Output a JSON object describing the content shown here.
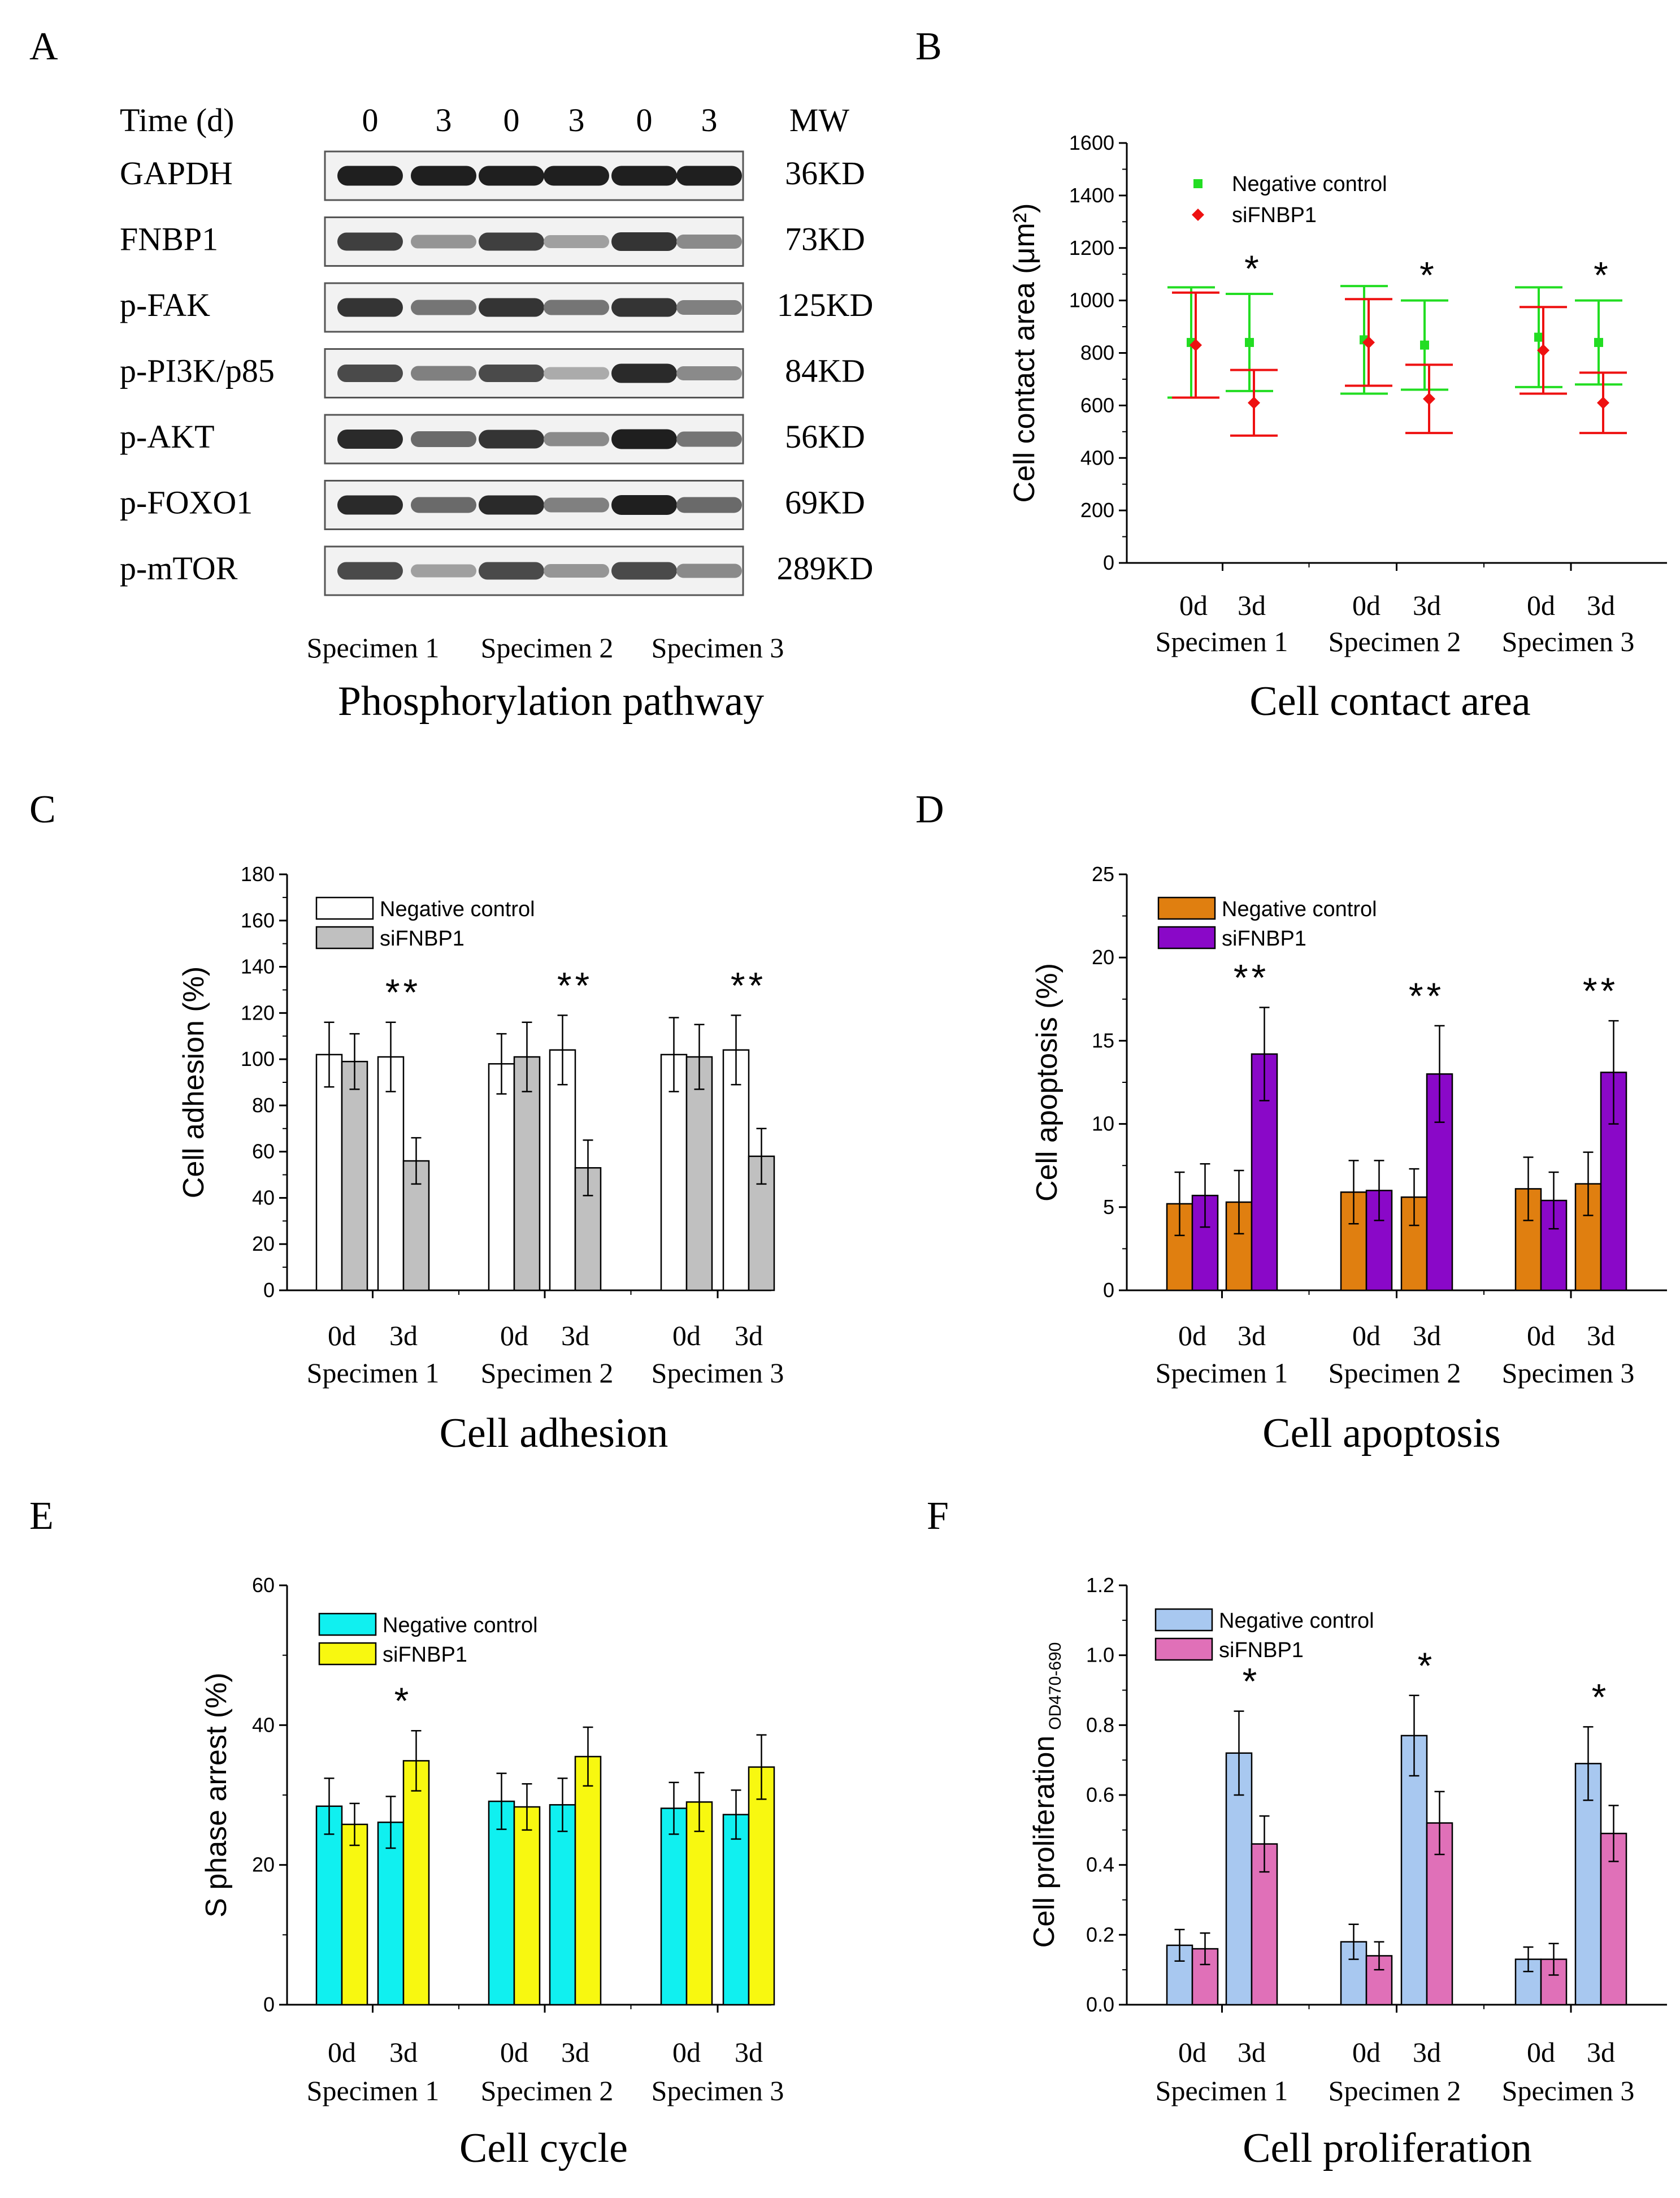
{
  "panel_letters": [
    "A",
    "B",
    "C",
    "D",
    "E",
    "F"
  ],
  "specimens": [
    "Specimen 1",
    "Specimen 2",
    "Specimen 3"
  ],
  "days": [
    "0d",
    "3d"
  ],
  "western_blot": {
    "caption": "Phosphorylation pathway",
    "time_label": "Time (d)",
    "mw_label": "MW",
    "time_points": [
      "0",
      "3",
      "0",
      "3",
      "0",
      "3"
    ],
    "specimen_labels": [
      "Specimen 1",
      "Specimen 2",
      "Specimen 3"
    ],
    "rows": [
      {
        "protein": "GAPDH",
        "mw": "36KD",
        "intensity": [
          0.95,
          0.95,
          0.95,
          0.95,
          0.95,
          0.95
        ]
      },
      {
        "protein": "FNBP1",
        "mw": "73KD",
        "intensity": [
          0.8,
          0.4,
          0.8,
          0.35,
          0.85,
          0.45
        ]
      },
      {
        "protein": "p-FAK",
        "mw": "125KD",
        "intensity": [
          0.85,
          0.55,
          0.85,
          0.55,
          0.85,
          0.5
        ]
      },
      {
        "protein": "p-PI3K/p85",
        "mw": "84KD",
        "intensity": [
          0.75,
          0.5,
          0.75,
          0.3,
          0.9,
          0.45
        ]
      },
      {
        "protein": "p-AKT",
        "mw": "56KD",
        "intensity": [
          0.9,
          0.6,
          0.85,
          0.45,
          0.95,
          0.55
        ]
      },
      {
        "protein": "p-FOXO1",
        "mw": "69KD",
        "intensity": [
          0.9,
          0.6,
          0.9,
          0.5,
          0.95,
          0.6
        ]
      },
      {
        "protein": "p-mTOR",
        "mw": "289KD",
        "intensity": [
          0.75,
          0.35,
          0.75,
          0.4,
          0.75,
          0.45
        ]
      }
    ]
  },
  "chart_data": [
    {
      "panel": "B",
      "type": "scatter",
      "caption": "Cell contact area",
      "ylabel": "Cell contact area (μm²)",
      "ylim": [
        0,
        1600
      ],
      "yticks": [
        0,
        200,
        400,
        600,
        800,
        1000,
        1200,
        1400,
        1600
      ],
      "categories": [
        "0d",
        "3d",
        "0d",
        "3d",
        "0d",
        "3d"
      ],
      "groups": [
        "Specimen 1",
        "Specimen 2",
        "Specimen 3"
      ],
      "series": [
        {
          "name": "Negative control",
          "color": "#22dd22",
          "marker": "square",
          "values": [
            840,
            840,
            850,
            830,
            860,
            840
          ],
          "errors": [
            210,
            185,
            205,
            170,
            190,
            160
          ]
        },
        {
          "name": "siFNBP1",
          "color": "#ee1111",
          "marker": "diamond",
          "values": [
            830,
            610,
            840,
            625,
            810,
            610
          ],
          "errors": [
            200,
            125,
            165,
            130,
            165,
            115
          ]
        }
      ],
      "significance": [
        "",
        "*",
        "",
        "*",
        "",
        "*"
      ]
    },
    {
      "panel": "C",
      "type": "bar",
      "caption": "Cell adhesion",
      "ylabel": "Cell adhesion (%)",
      "ylim": [
        0,
        180
      ],
      "yticks": [
        0,
        20,
        40,
        60,
        80,
        100,
        120,
        140,
        160,
        180
      ],
      "categories": [
        "0d",
        "3d",
        "0d",
        "3d",
        "0d",
        "3d"
      ],
      "groups": [
        "Specimen 1",
        "Specimen 2",
        "Specimen 3"
      ],
      "series": [
        {
          "name": "Negative control",
          "color": "#ffffff",
          "values": [
            102,
            101,
            98,
            104,
            102,
            104
          ],
          "errors": [
            14,
            15,
            13,
            15,
            16,
            15
          ]
        },
        {
          "name": "siFNBP1",
          "color": "#c0c0c0",
          "values": [
            99,
            56,
            101,
            53,
            101,
            58
          ],
          "errors": [
            12,
            10,
            15,
            12,
            14,
            12
          ]
        }
      ],
      "significance": [
        "",
        "**",
        "",
        "**",
        "",
        "**"
      ]
    },
    {
      "panel": "D",
      "type": "bar",
      "caption": "Cell apoptosis",
      "ylabel": "Cell apoptosis (%)",
      "ylim": [
        0,
        25
      ],
      "yticks": [
        0,
        5,
        10,
        15,
        20,
        25
      ],
      "categories": [
        "0d",
        "3d",
        "0d",
        "3d",
        "0d",
        "3d"
      ],
      "groups": [
        "Specimen 1",
        "Specimen 2",
        "Specimen 3"
      ],
      "series": [
        {
          "name": "Negative control",
          "color": "#e07f10",
          "values": [
            5.2,
            5.3,
            5.9,
            5.6,
            6.1,
            6.4
          ],
          "errors": [
            1.9,
            1.9,
            1.9,
            1.7,
            1.9,
            1.9
          ]
        },
        {
          "name": "siFNBP1",
          "color": "#8a08c8",
          "values": [
            5.7,
            14.2,
            6.0,
            13.0,
            5.4,
            13.1
          ],
          "errors": [
            1.9,
            2.8,
            1.8,
            2.9,
            1.7,
            3.1
          ]
        }
      ],
      "significance": [
        "",
        "**",
        "",
        "**",
        "",
        "**"
      ]
    },
    {
      "panel": "E",
      "type": "bar",
      "caption": "Cell cycle",
      "ylabel": "S phase arrest (%)",
      "ylim": [
        0,
        60
      ],
      "yticks": [
        0,
        20,
        40,
        60
      ],
      "categories": [
        "0d",
        "3d",
        "0d",
        "3d",
        "0d",
        "3d"
      ],
      "groups": [
        "Specimen 1",
        "Specimen 2",
        "Specimen 3"
      ],
      "series": [
        {
          "name": "Negative control",
          "color": "#10f0f0",
          "values": [
            28.4,
            26.1,
            29.1,
            28.6,
            28.1,
            27.2
          ],
          "errors": [
            4.0,
            3.7,
            4.0,
            3.8,
            3.7,
            3.5
          ]
        },
        {
          "name": "siFNBP1",
          "color": "#f8f810",
          "values": [
            25.8,
            34.9,
            28.3,
            35.5,
            29.0,
            34.0
          ],
          "errors": [
            3.0,
            4.3,
            3.3,
            4.2,
            4.2,
            4.6
          ]
        }
      ],
      "significance": [
        "",
        "*",
        "",
        "",
        "",
        ""
      ]
    },
    {
      "panel": "F",
      "type": "bar",
      "caption": "Cell proliferation",
      "ylabel": "Cell proliferation",
      "ylabel_sub": "OD470-690",
      "ylim": [
        0,
        1.2
      ],
      "yticks": [
        0.0,
        0.2,
        0.4,
        0.6,
        0.8,
        1.0,
        1.2
      ],
      "categories": [
        "0d",
        "3d",
        "0d",
        "3d",
        "0d",
        "3d"
      ],
      "groups": [
        "Specimen 1",
        "Specimen 2",
        "Specimen 3"
      ],
      "series": [
        {
          "name": "Negative control",
          "color": "#a8c8f0",
          "values": [
            0.17,
            0.72,
            0.18,
            0.77,
            0.13,
            0.69
          ],
          "errors": [
            0.045,
            0.12,
            0.05,
            0.115,
            0.035,
            0.105
          ]
        },
        {
          "name": "siFNBP1",
          "color": "#e070b8",
          "values": [
            0.16,
            0.46,
            0.14,
            0.52,
            0.13,
            0.49
          ],
          "errors": [
            0.045,
            0.08,
            0.04,
            0.09,
            0.045,
            0.08
          ]
        }
      ],
      "significance": [
        "",
        "*",
        "",
        "*",
        "",
        "*"
      ]
    }
  ]
}
